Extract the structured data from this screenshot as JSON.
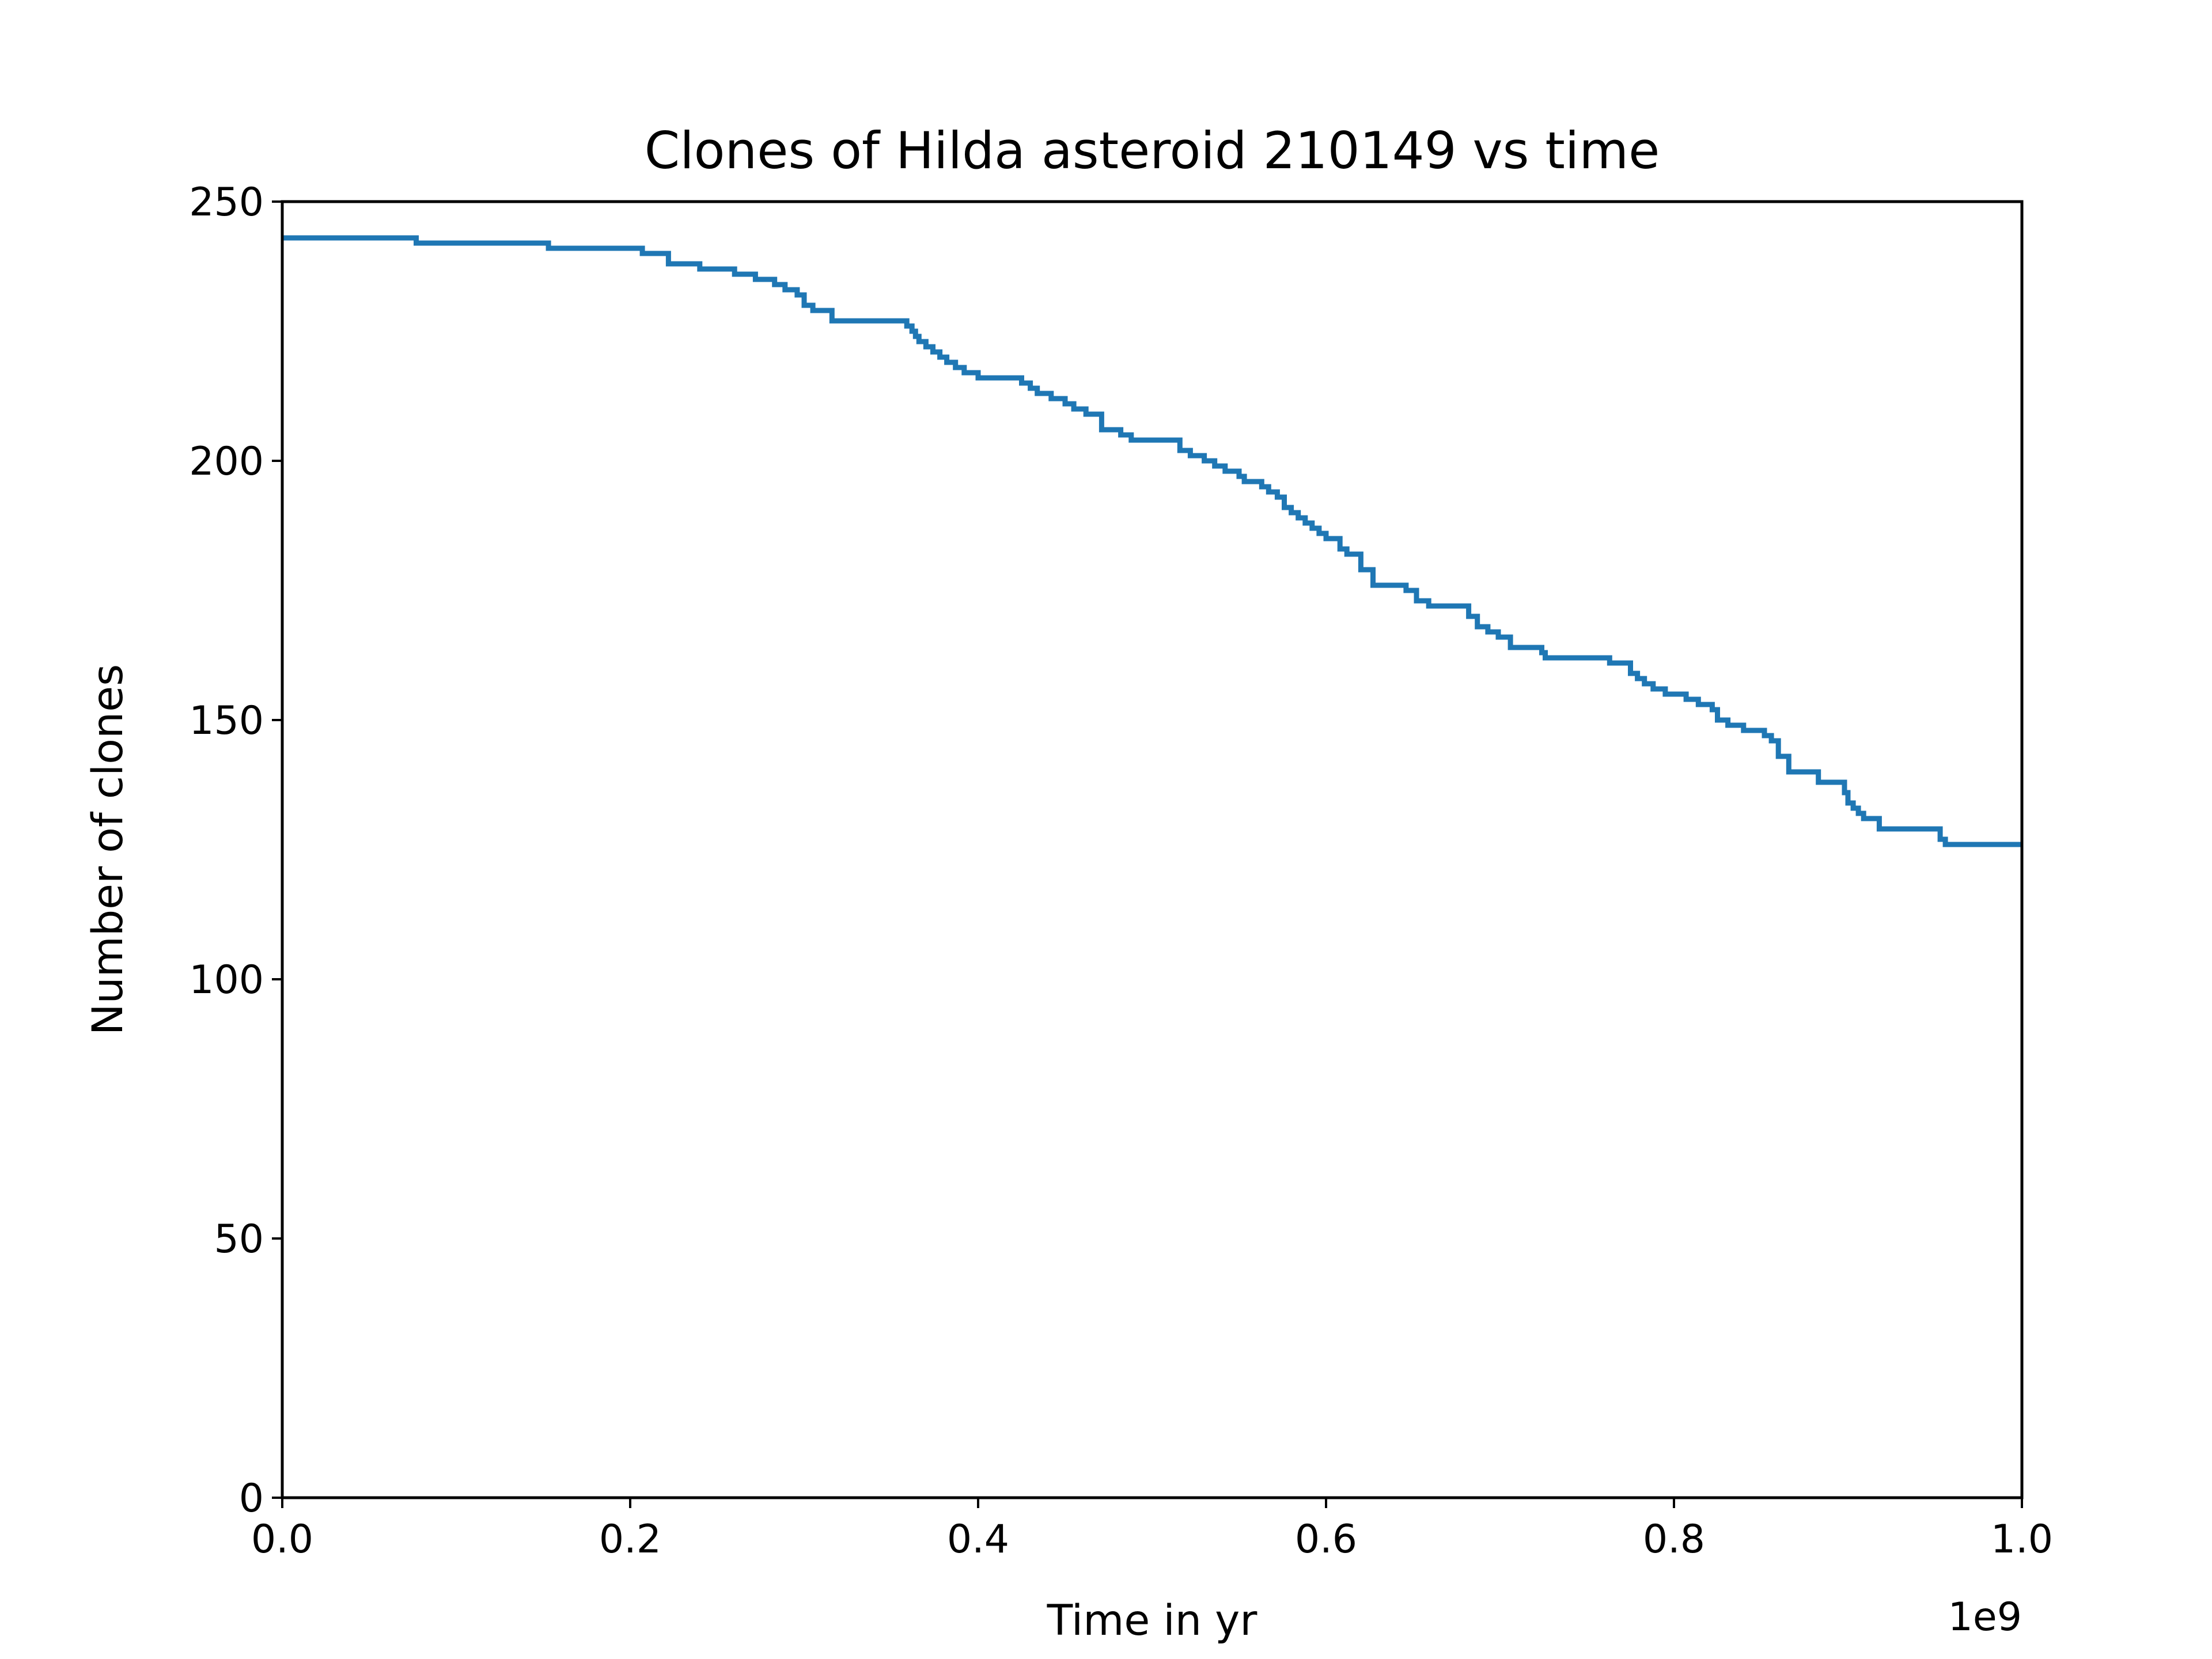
{
  "chart_data": {
    "type": "line",
    "title": "Clones of Hilda asteroid 210149 vs time",
    "xlabel": "Time in yr",
    "ylabel": "Number of clones",
    "x_offset_label": "1e9",
    "xlim": [
      0,
      1000000000
    ],
    "ylim": [
      0,
      250
    ],
    "x_ticks": [
      0,
      200000000,
      400000000,
      600000000,
      800000000,
      1000000000
    ],
    "x_tick_labels": [
      "0.0",
      "0.2",
      "0.4",
      "0.6",
      "0.8",
      "1.0"
    ],
    "y_ticks": [
      0,
      50,
      100,
      150,
      200,
      250
    ],
    "y_tick_labels": [
      "0",
      "50",
      "100",
      "150",
      "200",
      "250"
    ],
    "grid": false,
    "line_style": "step-post",
    "series": [
      {
        "color": "#1f77b4",
        "x": [
          0,
          77000000,
          153000000,
          207000000,
          222000000,
          240000000,
          260000000,
          272000000,
          283000000,
          289000000,
          296000000,
          300000000,
          305000000,
          316000000,
          359000000,
          362000000,
          364000000,
          366000000,
          370000000,
          374000000,
          378000000,
          382000000,
          387000000,
          392000000,
          400000000,
          425000000,
          430000000,
          434000000,
          442000000,
          450000000,
          455000000,
          462000000,
          471000000,
          482000000,
          488000000,
          516000000,
          522000000,
          530000000,
          536000000,
          542000000,
          550000000,
          553000000,
          563000000,
          567000000,
          572000000,
          576000000,
          580000000,
          584000000,
          588000000,
          592000000,
          596000000,
          600000000,
          608000000,
          612000000,
          620000000,
          627000000,
          646000000,
          652000000,
          659000000,
          682000000,
          687000000,
          693000000,
          699000000,
          706000000,
          724000000,
          726000000,
          763000000,
          775000000,
          779000000,
          783000000,
          788000000,
          795000000,
          807000000,
          814000000,
          822000000,
          825000000,
          831000000,
          840000000,
          852000000,
          856000000,
          860000000,
          866000000,
          883000000,
          898000000,
          900000000,
          903000000,
          906000000,
          909000000,
          918000000,
          953000000,
          956000000,
          967000000,
          972000000,
          979000000,
          991000000,
          1000000000
        ],
        "y": [
          243,
          242,
          241,
          240,
          238,
          237,
          236,
          235,
          234,
          233,
          232,
          230,
          229,
          227,
          226,
          225,
          224,
          223,
          222,
          221,
          220,
          219,
          218,
          217,
          216,
          215,
          214,
          213,
          212,
          211,
          210,
          209,
          206,
          205,
          204,
          202,
          201,
          200,
          199,
          198,
          197,
          196,
          195,
          194,
          193,
          191,
          190,
          189,
          188,
          187,
          186,
          185,
          183,
          182,
          179,
          176,
          175,
          173,
          172,
          170,
          168,
          167,
          166,
          164,
          163,
          162,
          161,
          159,
          158,
          157,
          156,
          155,
          154,
          153,
          152,
          150,
          149,
          148,
          147,
          146,
          143,
          140,
          138,
          136,
          134,
          133,
          132,
          131,
          129,
          127,
          126,
          126,
          126,
          126,
          126,
          126
        ]
      }
    ]
  }
}
